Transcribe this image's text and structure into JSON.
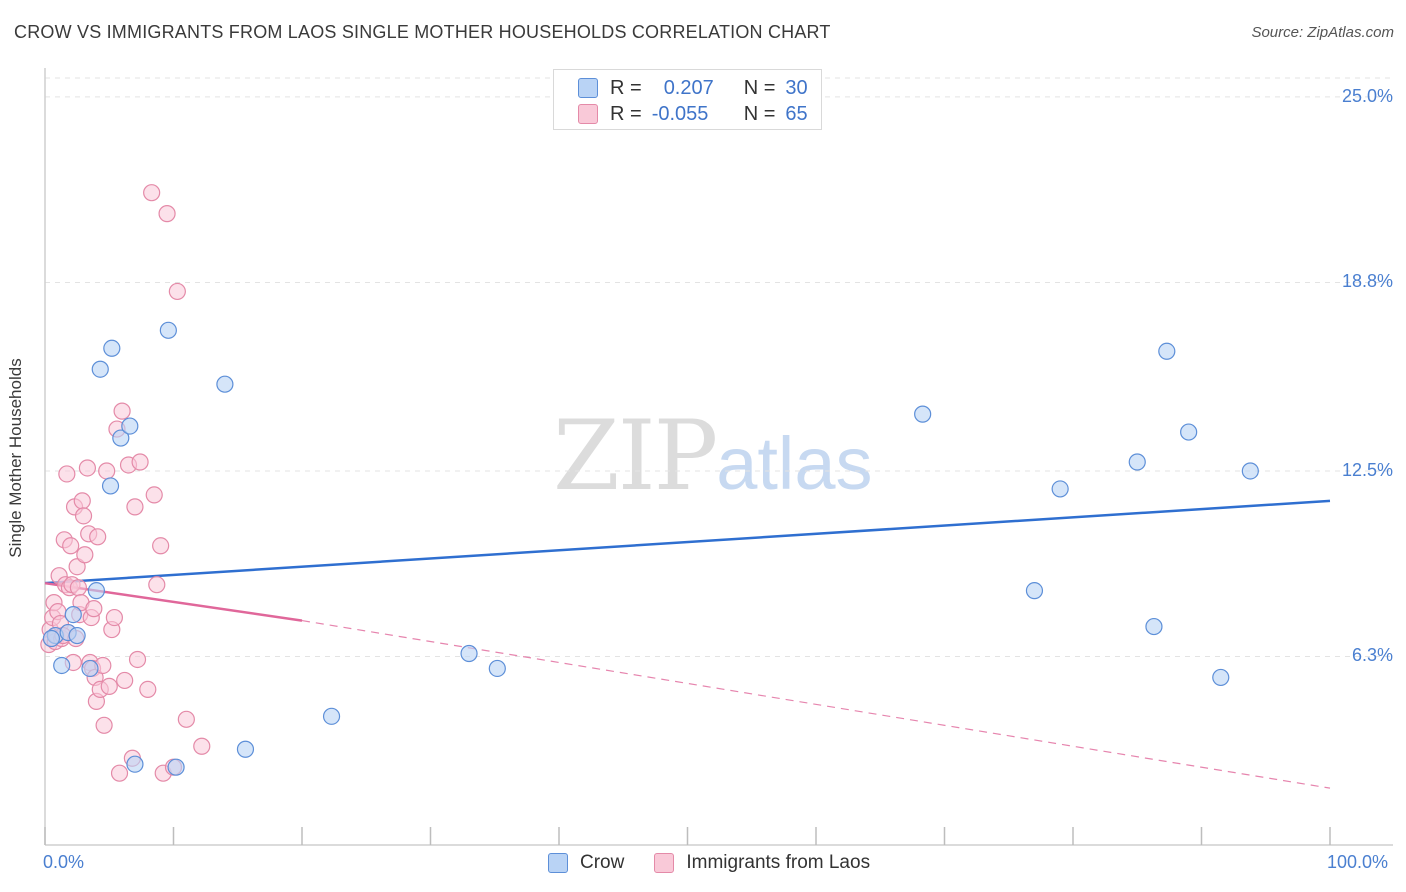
{
  "header": {
    "title": "CROW VS IMMIGRANTS FROM LAOS SINGLE MOTHER HOUSEHOLDS CORRELATION CHART",
    "source": "Source: ZipAtlas.com"
  },
  "watermark": {
    "zip": "ZIP",
    "atlas": "atlas"
  },
  "legend_stats": {
    "crow": {
      "r_label": "R =",
      "r_value": "0.207",
      "n_label": "N =",
      "n_value": "30"
    },
    "laos": {
      "r_label": "R =",
      "r_value": "-0.055",
      "n_label": "N =",
      "n_value": "65"
    }
  },
  "legend": {
    "crow": "Crow",
    "laos": "Immigrants from Laos"
  },
  "colors": {
    "crow_fill": "#b9d3f5",
    "crow_stroke": "#5d8fd8",
    "crow_line": "#2f6fd0",
    "laos_fill": "#f9c9d8",
    "laos_stroke": "#e48aa8",
    "laos_line": "#e0679a",
    "tick_text": "#4a7fd0",
    "grid": "#e3e3e3"
  },
  "chart_data": {
    "type": "scatter",
    "title": "CROW VS IMMIGRANTS FROM LAOS SINGLE MOTHER HOUSEHOLDS CORRELATION CHART",
    "xlabel": "",
    "ylabel": "Single Mother Households",
    "xlim": [
      0,
      100
    ],
    "ylim": [
      0,
      25.9
    ],
    "x_tick_labels": [
      "0.0%",
      "100.0%"
    ],
    "y_ticks": [
      6.3,
      12.5,
      18.8,
      25.0
    ],
    "y_tick_labels": [
      "6.3%",
      "12.5%",
      "18.8%",
      "25.0%"
    ],
    "grid": true,
    "series": [
      {
        "name": "Crow",
        "points": [
          [
            0.8,
            7.0
          ],
          [
            1.3,
            6.0
          ],
          [
            1.8,
            7.1
          ],
          [
            2.2,
            7.7
          ],
          [
            2.5,
            7.0
          ],
          [
            3.5,
            5.9
          ],
          [
            4.0,
            8.5
          ],
          [
            4.3,
            15.9
          ],
          [
            5.1,
            12.0
          ],
          [
            5.2,
            16.6
          ],
          [
            5.9,
            13.6
          ],
          [
            6.6,
            14.0
          ],
          [
            7.0,
            2.7
          ],
          [
            9.6,
            17.2
          ],
          [
            10.2,
            2.6
          ],
          [
            14.0,
            15.4
          ],
          [
            15.6,
            3.2
          ],
          [
            22.3,
            4.3
          ],
          [
            33.0,
            6.4
          ],
          [
            35.2,
            5.9
          ],
          [
            68.3,
            14.4
          ],
          [
            77.0,
            8.5
          ],
          [
            79.0,
            11.9
          ],
          [
            85.0,
            12.8
          ],
          [
            86.3,
            7.3
          ],
          [
            87.3,
            16.5
          ],
          [
            89.0,
            13.8
          ],
          [
            91.5,
            5.6
          ],
          [
            93.8,
            12.5
          ],
          [
            0.5,
            6.9
          ]
        ],
        "trend": {
          "x": [
            0,
            100
          ],
          "y": [
            8.75,
            11.5
          ],
          "style": "solid"
        }
      },
      {
        "name": "Immigrants from Laos",
        "points": [
          [
            0.3,
            6.7
          ],
          [
            0.4,
            7.2
          ],
          [
            0.5,
            6.9
          ],
          [
            0.6,
            7.6
          ],
          [
            0.7,
            8.1
          ],
          [
            0.8,
            6.8
          ],
          [
            0.9,
            7.0
          ],
          [
            1.0,
            7.8
          ],
          [
            1.1,
            9.0
          ],
          [
            1.2,
            7.4
          ],
          [
            1.3,
            6.9
          ],
          [
            1.5,
            10.2
          ],
          [
            1.6,
            8.7
          ],
          [
            1.7,
            12.4
          ],
          [
            1.8,
            7.1
          ],
          [
            1.9,
            8.6
          ],
          [
            2.0,
            10.0
          ],
          [
            2.1,
            8.7
          ],
          [
            2.2,
            6.1
          ],
          [
            2.3,
            11.3
          ],
          [
            2.5,
            9.3
          ],
          [
            2.6,
            8.6
          ],
          [
            2.7,
            7.7
          ],
          [
            2.8,
            8.1
          ],
          [
            2.9,
            11.5
          ],
          [
            3.0,
            11.0
          ],
          [
            3.1,
            9.7
          ],
          [
            3.3,
            12.6
          ],
          [
            3.4,
            10.4
          ],
          [
            3.5,
            6.1
          ],
          [
            3.6,
            7.6
          ],
          [
            3.7,
            5.9
          ],
          [
            3.8,
            7.9
          ],
          [
            3.9,
            5.6
          ],
          [
            4.0,
            4.8
          ],
          [
            4.1,
            10.3
          ],
          [
            4.3,
            5.2
          ],
          [
            4.5,
            6.0
          ],
          [
            4.6,
            4.0
          ],
          [
            4.8,
            12.5
          ],
          [
            5.0,
            5.3
          ],
          [
            5.2,
            7.2
          ],
          [
            5.4,
            7.6
          ],
          [
            5.6,
            13.9
          ],
          [
            5.8,
            2.4
          ],
          [
            6.0,
            14.5
          ],
          [
            6.2,
            5.5
          ],
          [
            6.5,
            12.7
          ],
          [
            6.8,
            2.9
          ],
          [
            7.0,
            11.3
          ],
          [
            7.2,
            6.2
          ],
          [
            7.4,
            12.8
          ],
          [
            8.0,
            5.2
          ],
          [
            8.3,
            21.8
          ],
          [
            8.5,
            11.7
          ],
          [
            8.7,
            8.7
          ],
          [
            9.0,
            10.0
          ],
          [
            9.2,
            2.4
          ],
          [
            9.5,
            21.1
          ],
          [
            10.0,
            2.6
          ],
          [
            10.3,
            18.5
          ],
          [
            11.0,
            4.2
          ],
          [
            12.2,
            3.3
          ],
          [
            1.4,
            7.0
          ],
          [
            2.4,
            6.9
          ]
        ],
        "trend": {
          "x": [
            0,
            20
          ],
          "y": [
            8.75,
            7.5
          ],
          "style": "solid",
          "extension": {
            "x": [
              20,
              100
            ],
            "y": [
              7.5,
              1.9
            ],
            "style": "dashed"
          }
        }
      }
    ]
  }
}
